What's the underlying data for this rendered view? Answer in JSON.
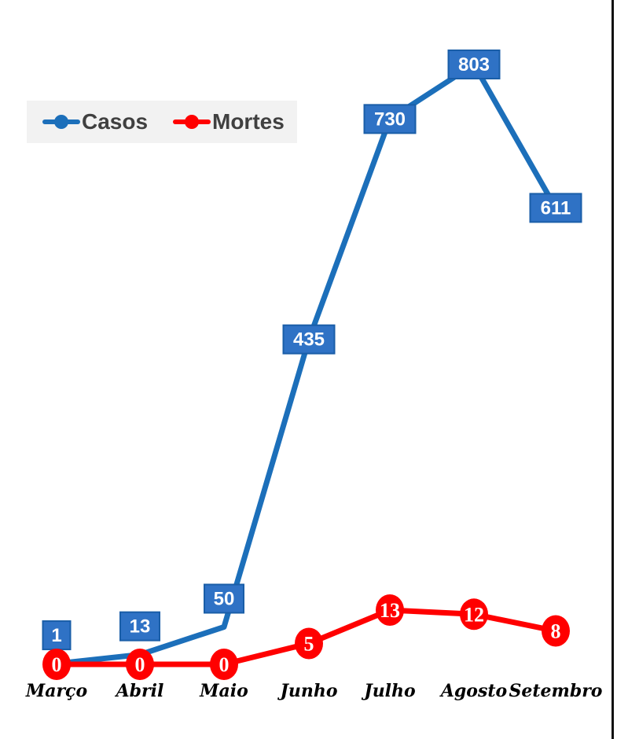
{
  "chart_data": {
    "type": "line",
    "categories": [
      "Março",
      "Abril",
      "Maio",
      "Junho",
      "Julho",
      "Agosto",
      "Setembro"
    ],
    "series": [
      {
        "name": "Casos",
        "values": [
          1,
          13,
          50,
          435,
          730,
          803,
          611
        ],
        "color": "#1c6fba",
        "label_bg": "#2f72c5"
      },
      {
        "name": "Mortes",
        "values": [
          0,
          0,
          0,
          5,
          13,
          12,
          8
        ],
        "color": "#ff0000",
        "label_bg": "#ff0000"
      }
    ],
    "title": "",
    "xlabel": "",
    "ylabel": "",
    "ylim": [
      0,
      850
    ],
    "grid": false,
    "legend": "top-left",
    "data_labels": true
  }
}
